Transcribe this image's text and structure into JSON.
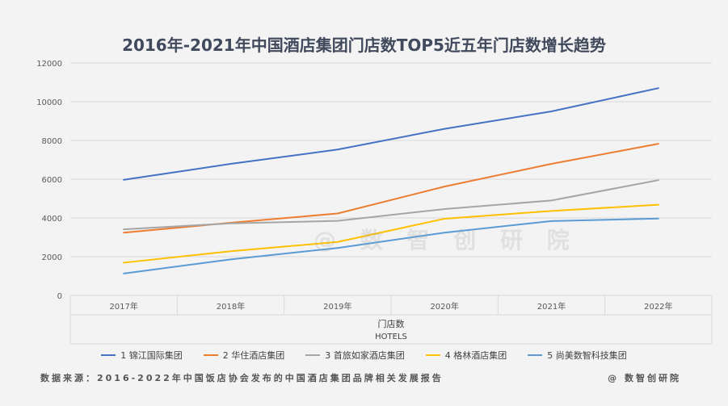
{
  "title": "2016年-2021年中国酒店集团门店数TOP5近五年门店数增长趋势",
  "watermark": "@ 数 智 创 研 院",
  "footer": {
    "source": "数据来源：2016-2022年中国饭店协会发布的中国酒店集团品牌相关发展报告",
    "brand": "@ 数智创研院"
  },
  "colors": {
    "grid": "#d9d9d9",
    "axis_text": "#595959"
  },
  "chart_data": {
    "type": "line",
    "title": "2016年-2021年中国酒店集团门店数TOP5近五年门店数增长趋势",
    "xlabel": "门店数",
    "xlabel_sub": "HOTELS",
    "ylabel": "",
    "ylim": [
      0,
      12000
    ],
    "yticks": [
      0,
      2000,
      4000,
      6000,
      8000,
      10000,
      12000
    ],
    "ytick_labels": [
      "0",
      "2000",
      "4000",
      "6000",
      "8000",
      "10000",
      "12000"
    ],
    "grid": true,
    "legend_position": "bottom",
    "categories": [
      "2017年",
      "2018年",
      "2019年",
      "2020年",
      "2021年",
      "2022年"
    ],
    "series": [
      {
        "name": "1 锦江国际集团",
        "color": "#4472c4",
        "values": [
          5970,
          6790,
          7530,
          8600,
          9500,
          10700
        ]
      },
      {
        "name": "2 华住酒店集团",
        "color": "#ed7d31",
        "values": [
          3240,
          3750,
          4230,
          5620,
          6790,
          7830
        ]
      },
      {
        "name": "3 首旅如家酒店集团",
        "color": "#a5a5a5",
        "values": [
          3410,
          3720,
          3850,
          4460,
          4900,
          5950
        ]
      },
      {
        "name": "4 格林酒店集团",
        "color": "#ffc000",
        "values": [
          1690,
          2280,
          2760,
          3960,
          4360,
          4680
        ]
      },
      {
        "name": "5 尚美数智科技集团",
        "color": "#5b9bd5",
        "values": [
          1130,
          1860,
          2450,
          3240,
          3840,
          3970
        ]
      }
    ]
  }
}
